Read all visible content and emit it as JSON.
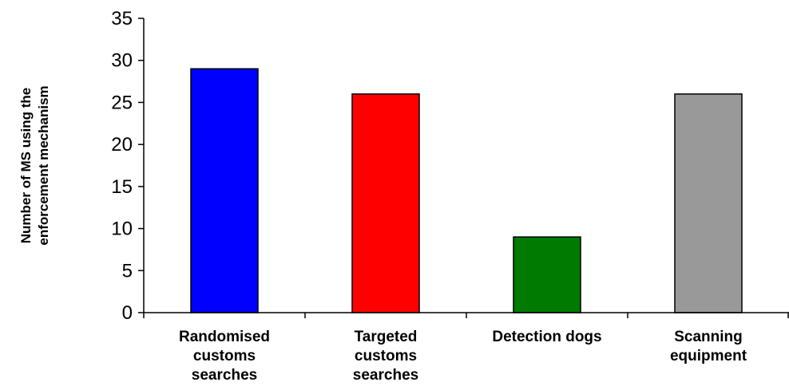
{
  "chart_data": {
    "type": "bar",
    "title": "",
    "xlabel": "",
    "ylabel": [
      "Number of MS using the",
      "enforcement mechanism"
    ],
    "categories": [
      [
        "Randomised",
        "customs",
        "searches"
      ],
      [
        "Targeted",
        "customs",
        "searches"
      ],
      [
        "Detection dogs"
      ],
      [
        "Scanning",
        "equipment"
      ]
    ],
    "values": [
      29,
      26,
      9,
      26
    ],
    "colors": [
      "#0000ff",
      "#ff0000",
      "#007a00",
      "#999999"
    ],
    "ylim": [
      0,
      35
    ],
    "yticks": [
      0,
      5,
      10,
      15,
      20,
      25,
      30,
      35
    ],
    "grid": false,
    "legend": "none"
  }
}
